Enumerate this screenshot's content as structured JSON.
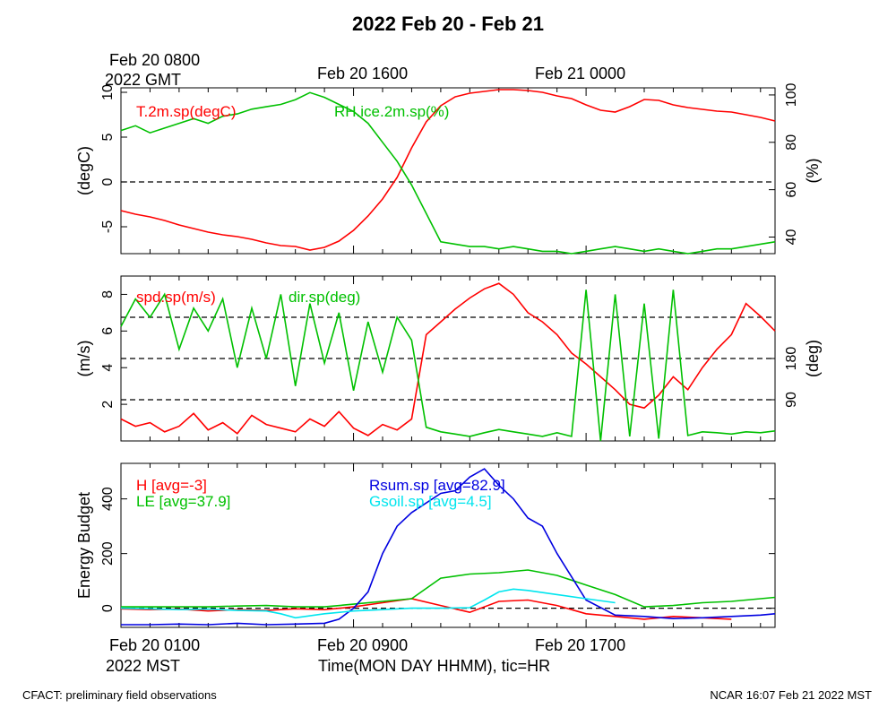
{
  "title": "2022 Feb 20 - Feb 21",
  "top_axis": {
    "first_tick": [
      "Feb 20 0800",
      "2022 GMT"
    ],
    "ticks": [
      "Feb 20 1600",
      "Feb 21 0000"
    ]
  },
  "bottom_axis": {
    "first_tick": [
      "Feb 20 0100",
      "2022 MST"
    ],
    "ticks": [
      "Feb 20 0900",
      "Feb 20 1700"
    ],
    "xlabel": "Time(MON DAY HHMM), tic=HR"
  },
  "footer": {
    "left": "CFACT: preliminary field observations",
    "right": "NCAR 16:07 Feb 21 2022 MST"
  },
  "colors": {
    "red": "#ff0000",
    "green": "#00c000",
    "blue": "#0000e0",
    "cyan": "#00e5ee"
  },
  "chart_data": [
    {
      "type": "line",
      "panel": "temperature-humidity",
      "x_unit": "hours since Feb 20 0100 MST",
      "xlim": [
        0,
        22.5
      ],
      "left_axis": {
        "label": "(degC)",
        "ylim": [
          -8,
          10.5
        ],
        "ticks": [
          -5,
          0,
          5,
          10
        ]
      },
      "right_axis": {
        "label": "(%)",
        "ylim": [
          33,
          103
        ],
        "ticks": [
          40,
          60,
          80,
          100
        ]
      },
      "reference_lines": [
        {
          "axis": "left",
          "y": 0
        }
      ],
      "grid": false,
      "series": [
        {
          "name": "T.2m.sp(degC)",
          "axis": "left",
          "color": "#ff0000",
          "x": [
            0,
            0.5,
            1,
            1.5,
            2,
            2.5,
            3,
            3.5,
            4,
            4.5,
            5,
            5.5,
            6,
            6.5,
            7,
            7.5,
            8,
            8.5,
            9,
            9.5,
            10,
            10.5,
            11,
            11.5,
            12,
            12.5,
            13,
            13.5,
            14,
            14.5,
            15,
            15.5,
            16,
            16.5,
            17,
            17.5,
            18,
            18.5,
            19,
            19.5,
            20,
            20.5,
            21,
            21.5,
            22,
            22.5
          ],
          "y": [
            -3.2,
            -3.6,
            -3.9,
            -4.3,
            -4.8,
            -5.2,
            -5.6,
            -5.9,
            -6.1,
            -6.4,
            -6.8,
            -7.1,
            -7.2,
            -7.6,
            -7.3,
            -6.6,
            -5.4,
            -3.8,
            -1.9,
            0.5,
            3.8,
            6.7,
            8.5,
            9.5,
            9.9,
            10.1,
            10.3,
            10.3,
            10.2,
            10.0,
            9.6,
            9.3,
            8.6,
            8.0,
            7.8,
            8.4,
            9.2,
            9.1,
            8.6,
            8.3,
            8.1,
            7.9,
            7.8,
            7.5,
            7.2,
            6.8
          ]
        },
        {
          "name": "RH.ice.2m.sp(%)",
          "axis": "right",
          "color": "#00c000",
          "x": [
            0,
            0.5,
            1,
            1.5,
            2,
            2.5,
            3,
            3.5,
            4,
            4.5,
            5,
            5.5,
            6,
            6.5,
            7,
            7.5,
            8,
            8.5,
            9,
            9.5,
            10,
            10.5,
            11,
            11.5,
            12,
            12.5,
            13,
            13.5,
            14,
            14.5,
            15,
            15.5,
            16,
            16.5,
            17,
            17.5,
            18,
            18.5,
            19,
            19.5,
            20,
            20.5,
            21,
            21.5,
            22,
            22.5
          ],
          "y": [
            85,
            87,
            84,
            86,
            88,
            90,
            88,
            91,
            92,
            94,
            95,
            96,
            98,
            101,
            99,
            96,
            93,
            88,
            80,
            72,
            62,
            50,
            38,
            37,
            36,
            36,
            35,
            36,
            35,
            34,
            34,
            33,
            34,
            35,
            36,
            35,
            34,
            35,
            34,
            33,
            34,
            35,
            35,
            36,
            37,
            38
          ]
        }
      ]
    },
    {
      "type": "line",
      "panel": "wind",
      "x_unit": "hours since Feb 20 0100 MST",
      "xlim": [
        0,
        22.5
      ],
      "left_axis": {
        "label": "(m/s)",
        "ylim": [
          0,
          9
        ],
        "ticks": [
          2,
          4,
          6,
          8
        ]
      },
      "right_axis": {
        "label": "(deg)",
        "ylim": [
          0,
          360
        ],
        "ticks": [
          90,
          180
        ]
      },
      "reference_lines": [
        {
          "axis": "right",
          "y": 90
        },
        {
          "axis": "right",
          "y": 180
        },
        {
          "axis": "right",
          "y": 270
        }
      ],
      "grid": false,
      "series": [
        {
          "name": "spd.sp(m/s)",
          "axis": "left",
          "color": "#ff0000",
          "x": [
            0,
            0.5,
            1,
            1.5,
            2,
            2.5,
            3,
            3.5,
            4,
            4.5,
            5,
            5.5,
            6,
            6.5,
            7,
            7.5,
            8,
            8.5,
            9,
            9.5,
            10,
            10.5,
            11,
            11.5,
            12,
            12.5,
            13,
            13.5,
            14,
            14.5,
            15,
            15.5,
            16,
            16.5,
            17,
            17.5,
            18,
            18.5,
            19,
            19.5,
            20,
            20.5,
            21,
            21.5,
            22,
            22.5
          ],
          "y": [
            1.2,
            0.8,
            1.0,
            0.5,
            0.8,
            1.5,
            0.6,
            1.0,
            0.4,
            1.4,
            0.9,
            0.7,
            0.5,
            1.2,
            0.8,
            1.6,
            0.7,
            0.3,
            0.9,
            0.6,
            1.2,
            5.8,
            6.5,
            7.2,
            7.8,
            8.3,
            8.6,
            8.0,
            7.0,
            6.5,
            5.8,
            4.8,
            4.2,
            3.5,
            2.8,
            2.0,
            1.8,
            2.5,
            3.5,
            2.8,
            4.0,
            5.0,
            5.8,
            7.5,
            6.8,
            6.0
          ]
        },
        {
          "name": "dir.sp(deg)",
          "axis": "right",
          "color": "#00c000",
          "x": [
            0,
            0.5,
            1,
            1.5,
            2,
            2.5,
            3,
            3.5,
            4,
            4.5,
            5,
            5.5,
            6,
            6.5,
            7,
            7.5,
            8,
            8.5,
            9,
            9.5,
            10,
            10.5,
            11,
            11.5,
            12,
            12.5,
            13,
            13.5,
            14,
            14.5,
            15,
            15.5,
            16,
            16.5,
            17,
            17.5,
            18,
            18.5,
            19,
            19.5,
            20,
            20.5,
            21,
            21.5,
            22,
            22.5
          ],
          "y": [
            250,
            310,
            270,
            320,
            200,
            290,
            240,
            310,
            160,
            290,
            180,
            320,
            120,
            300,
            170,
            280,
            110,
            260,
            150,
            270,
            220,
            30,
            20,
            15,
            10,
            18,
            25,
            20,
            15,
            10,
            18,
            10,
            330,
            0,
            320,
            10,
            300,
            5,
            330,
            12,
            20,
            18,
            15,
            20,
            18,
            22
          ]
        }
      ]
    },
    {
      "type": "line",
      "panel": "energy-budget",
      "x_unit": "hours since Feb 20 0100 MST",
      "xlim": [
        0,
        22.5
      ],
      "left_axis": {
        "label": "Energy Budget",
        "ylim": [
          -70,
          530
        ],
        "ticks": [
          0,
          200,
          400
        ]
      },
      "reference_lines": [
        {
          "axis": "left",
          "y": 0
        }
      ],
      "grid": false,
      "series": [
        {
          "name": "H [avg=-3]",
          "color": "#ff0000",
          "x": [
            0,
            1,
            2,
            3,
            4,
            5,
            6,
            7,
            8,
            9,
            10,
            11,
            12,
            13,
            14,
            15,
            16,
            17,
            18,
            19,
            20,
            21
          ],
          "y": [
            -2,
            -5,
            -3,
            -10,
            -5,
            -8,
            -2,
            -5,
            5,
            20,
            35,
            10,
            -15,
            25,
            30,
            10,
            -20,
            -30,
            -40,
            -30,
            -35,
            -40
          ]
        },
        {
          "name": "LE [avg=37.9]",
          "color": "#00c000",
          "x": [
            0,
            1,
            2,
            3,
            4,
            5,
            6,
            7,
            8,
            9,
            10,
            11,
            12,
            13,
            14,
            15,
            16,
            17,
            18,
            19,
            20,
            21,
            22,
            22.5
          ],
          "y": [
            5,
            5,
            5,
            5,
            8,
            10,
            5,
            5,
            15,
            25,
            35,
            110,
            125,
            130,
            140,
            120,
            85,
            50,
            5,
            10,
            20,
            25,
            35,
            40
          ]
        },
        {
          "name": "Rsum.sp [avg=82.9]",
          "color": "#0000e0",
          "x": [
            0,
            1,
            2,
            3,
            4,
            5,
            6,
            7,
            7.5,
            8,
            8.5,
            9,
            9.5,
            10,
            11,
            11.5,
            12,
            12.5,
            13,
            13.5,
            14,
            14.5,
            15,
            16,
            17,
            18,
            19,
            20,
            21,
            22,
            22.5
          ],
          "y": [
            -60,
            -60,
            -58,
            -60,
            -55,
            -60,
            -58,
            -55,
            -40,
            0,
            60,
            200,
            300,
            350,
            420,
            430,
            480,
            510,
            450,
            400,
            330,
            300,
            200,
            30,
            -25,
            -30,
            -38,
            -35,
            -30,
            -25,
            -20
          ]
        },
        {
          "name": "Gsoil.sp [avg=4.5]",
          "color": "#00e5ee",
          "x": [
            0,
            1,
            2,
            3,
            4,
            5,
            5.5,
            6,
            7,
            8,
            9,
            10,
            11,
            12,
            12.5,
            13,
            13.5,
            14,
            15,
            16,
            17
          ],
          "y": [
            0,
            -2,
            -5,
            -3,
            -8,
            -10,
            -20,
            -35,
            -20,
            -10,
            -5,
            0,
            0,
            2,
            30,
            60,
            70,
            65,
            50,
            35,
            20
          ]
        }
      ]
    }
  ]
}
